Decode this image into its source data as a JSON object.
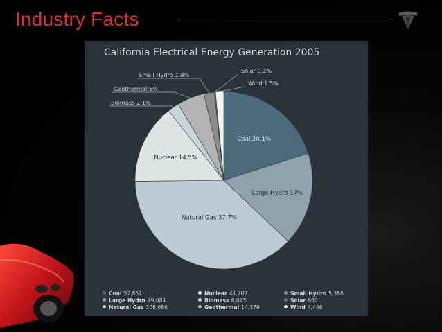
{
  "slide": {
    "title": "Industry Facts"
  },
  "colors": {
    "title_red": "#d6322a",
    "panel_bg": "#2b3238"
  },
  "chart_data": {
    "type": "pie",
    "title": "California Electrical Energy Generation 2005",
    "slices": [
      {
        "label": "Coal",
        "slice_label": "Coal 20.1%",
        "percent": 20.1,
        "value": 57851,
        "value_text": "57,851",
        "color": "#4d6a7c"
      },
      {
        "label": "Large Hydro",
        "slice_label": "Large Hydro 17%",
        "percent": 17,
        "value": 49084,
        "value_text": "49,084",
        "color": "#8fa2ad"
      },
      {
        "label": "Natural Gas",
        "slice_label": "Natural Gas 37.7%",
        "percent": 37.7,
        "value": 108686,
        "value_text": "108,686",
        "color": "#bccbd4"
      },
      {
        "label": "Nuclear",
        "slice_label": "Nuclear 14.5%",
        "percent": 14.5,
        "value": 41707,
        "value_text": "41,707",
        "color": "#dfe3e4"
      },
      {
        "label": "Biomass",
        "slice_label": "Biomass 2.1%",
        "percent": 2.1,
        "value": 6045,
        "value_text": "6,045",
        "color": "#c8d6da"
      },
      {
        "label": "Geothermal",
        "slice_label": "Geothermal 5%",
        "percent": 5,
        "value": 14379,
        "value_text": "14,379",
        "color": "#b3b3b3"
      },
      {
        "label": "Small Hydro",
        "slice_label": "Small Hydro 1.9%",
        "percent": 1.9,
        "value": 5386,
        "value_text": "5,386",
        "color": "#8c8c8c"
      },
      {
        "label": "Solar",
        "slice_label": "Solar 0.2%",
        "percent": 0.2,
        "value": 660,
        "value_text": "660",
        "color": "#707070"
      },
      {
        "label": "Wind",
        "slice_label": "Wind 1.5%",
        "percent": 1.5,
        "value": 4446,
        "value_text": "4,446",
        "color": "#f2f2f2"
      }
    ]
  }
}
